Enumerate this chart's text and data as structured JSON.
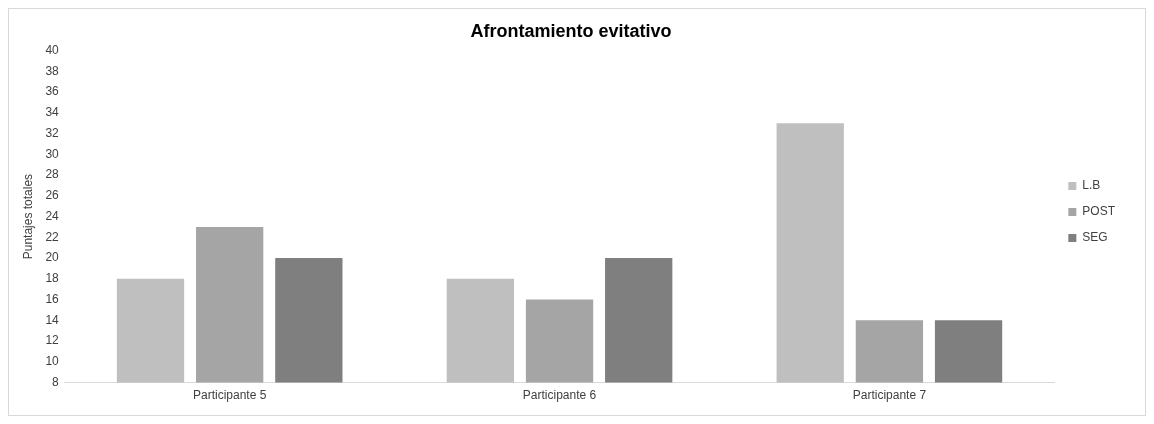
{
  "chart_data": {
    "type": "bar",
    "title": "Afrontamiento evitativo",
    "ylabel": "Puntajes totales",
    "categories": [
      "Participante 5",
      "Participante 6",
      "Participante 7"
    ],
    "series": [
      {
        "name": "L.B",
        "color": "#bfbfbf",
        "values": [
          18,
          18,
          33
        ]
      },
      {
        "name": "POST",
        "color": "#a5a5a5",
        "values": [
          23,
          16,
          14
        ]
      },
      {
        "name": "SEG",
        "color": "#7f7f7f",
        "values": [
          20,
          20,
          14
        ]
      }
    ],
    "ylim": [
      8,
      40
    ],
    "yticks": [
      8,
      10,
      12,
      14,
      16,
      18,
      20,
      22,
      24,
      26,
      28,
      30,
      32,
      34,
      36,
      38,
      40
    ],
    "grid": false,
    "legend": "right"
  }
}
